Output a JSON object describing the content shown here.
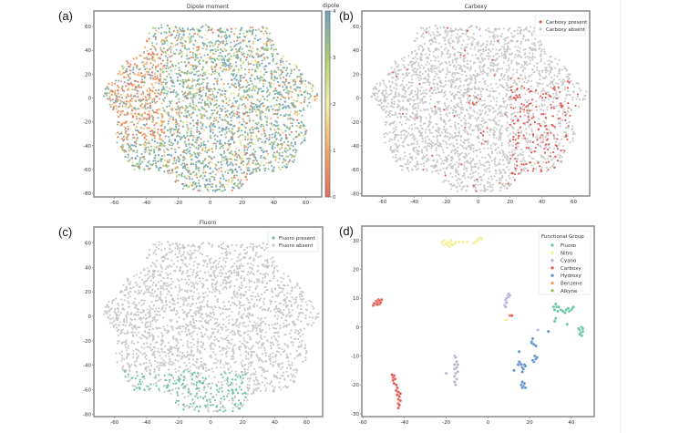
{
  "chart_data": [
    {
      "panel_label": "(a)",
      "type": "scatter",
      "title": "Dipole moment",
      "xlim": [
        -73,
        70
      ],
      "ylim": [
        -83,
        73
      ],
      "xticks": [
        -60,
        -40,
        -20,
        0,
        20,
        40,
        60
      ],
      "yticks": [
        60,
        40,
        20,
        0,
        -20,
        -40,
        -60,
        -80
      ],
      "colorbar": {
        "label": "dipole",
        "range": [
          0,
          4
        ],
        "ticks": [
          0,
          1,
          2,
          3,
          4
        ],
        "colors": [
          "#e8695c",
          "#f3a865",
          "#f6efaa",
          "#a9cf6e",
          "#6c9fc8"
        ]
      },
      "high_dipole_share": 0.6,
      "low_dipole_region": {
        "x": [
          -65,
          -30
        ],
        "y": [
          -35,
          50
        ]
      }
    },
    {
      "panel_label": "(b)",
      "type": "scatter",
      "title": "Carboxy",
      "xlim": [
        -73,
        70
      ],
      "ylim": [
        -82,
        73
      ],
      "xticks": [
        -60,
        -40,
        -20,
        0,
        20,
        40,
        60
      ],
      "yticks": [
        60,
        40,
        20,
        0,
        -20,
        -40,
        -60,
        -80
      ],
      "legend": {
        "placement": "top-right",
        "items": [
          {
            "label": "Carboxy present",
            "color": "#e5554e"
          },
          {
            "label": "Carboxy absent",
            "color": "#c8c8c8"
          }
        ]
      },
      "present_region": {
        "x": [
          20,
          65
        ],
        "y": [
          -72,
          10
        ]
      }
    },
    {
      "panel_label": "(c)",
      "type": "scatter",
      "title": "Fluoro",
      "xlim": [
        -73,
        70
      ],
      "ylim": [
        -82,
        73
      ],
      "xticks": [
        -60,
        -40,
        -20,
        0,
        20,
        40,
        60
      ],
      "yticks": [
        60,
        40,
        20,
        0,
        -20,
        -40,
        -60,
        -80
      ],
      "legend": {
        "placement": "top-right",
        "items": [
          {
            "label": "Fluoro present",
            "color": "#66c2a5"
          },
          {
            "label": "Fluoro absent",
            "color": "#c8c8c8"
          }
        ]
      },
      "present_region": {
        "x": [
          -58,
          22
        ],
        "y": [
          -78,
          -45
        ]
      }
    },
    {
      "panel_label": "(d)",
      "type": "scatter",
      "title": "",
      "xlim": [
        -60.5,
        51
      ],
      "ylim": [
        -31,
        35
      ],
      "xticks": [
        -60,
        -40,
        -20,
        0,
        20,
        40
      ],
      "yticks": [
        30,
        20,
        10,
        0,
        -10,
        -20,
        -30
      ],
      "legend": {
        "title": "Functional Group",
        "placement": "top-right"
      },
      "series": [
        {
          "name": "Fluoro",
          "color": "#66c2a5",
          "points": [
            [
              31.5,
              7
            ],
            [
              32,
              6
            ],
            [
              32.5,
              8
            ],
            [
              33,
              7
            ],
            [
              33.5,
              5.5
            ],
            [
              34,
              7
            ],
            [
              35,
              6
            ],
            [
              36,
              5.5
            ],
            [
              37,
              5
            ],
            [
              37.5,
              6
            ],
            [
              38.5,
              6.5
            ],
            [
              39,
              5.5
            ],
            [
              40,
              6
            ],
            [
              40.5,
              6.5
            ],
            [
              41,
              7
            ],
            [
              32,
              2
            ],
            [
              32.5,
              3
            ],
            [
              38,
              1
            ],
            [
              44,
              -1
            ],
            [
              44.5,
              -2
            ],
            [
              45,
              -3
            ],
            [
              45,
              0
            ],
            [
              45.5,
              -1.5
            ],
            [
              44,
              -2.5
            ],
            [
              45.5,
              -0.5
            ],
            [
              43.5,
              -0.5
            ]
          ]
        },
        {
          "name": "Nitro",
          "color": "#f2f08c",
          "points": [
            [
              -22,
              29.5
            ],
            [
              -21.5,
              28.5
            ],
            [
              -21,
              30
            ],
            [
              -20,
              29
            ],
            [
              -19.5,
              28.5
            ],
            [
              -19,
              29.5
            ],
            [
              -18.5,
              28
            ],
            [
              -18,
              29
            ],
            [
              -17.5,
              30
            ],
            [
              -17,
              28.5
            ],
            [
              -16,
              29
            ],
            [
              -15.5,
              29.5
            ],
            [
              -14,
              29.5
            ],
            [
              -12,
              29.5
            ],
            [
              -10,
              29.5
            ],
            [
              -7,
              29
            ],
            [
              -6,
              29.5
            ],
            [
              -5,
              30
            ],
            [
              -4.5,
              30.5
            ],
            [
              -4,
              31
            ],
            [
              -3.5,
              31
            ],
            [
              -3,
              30.5
            ],
            [
              8.5,
              2.5
            ],
            [
              9,
              2.5
            ]
          ]
        },
        {
          "name": "Cyano",
          "color": "#b4b0d6",
          "points": [
            [
              8,
              7.5
            ],
            [
              8.5,
              8.5
            ],
            [
              8.5,
              9.5
            ],
            [
              9,
              10
            ],
            [
              9.5,
              11
            ],
            [
              10,
              11.5
            ],
            [
              10,
              10.5
            ],
            [
              9,
              8.5
            ],
            [
              8.5,
              7
            ],
            [
              10.5,
              11
            ],
            [
              -20,
              -16
            ],
            [
              -16,
              -10
            ],
            [
              -15.5,
              -10.5
            ],
            [
              -15,
              -12
            ],
            [
              -16,
              -13
            ],
            [
              -15,
              -14
            ],
            [
              -16,
              -14.5
            ],
            [
              -14.5,
              -15.5
            ],
            [
              -15.5,
              -16
            ],
            [
              -16,
              -17
            ],
            [
              -15,
              -18
            ],
            [
              -16,
              -19
            ],
            [
              -15.5,
              -20
            ],
            [
              -14.5,
              -13
            ],
            [
              24,
              -1
            ]
          ]
        },
        {
          "name": "Carboxy",
          "color": "#e5554e",
          "points": [
            [
              -55,
              7.5
            ],
            [
              -54,
              8
            ],
            [
              -53.5,
              9
            ],
            [
              -53,
              8.5
            ],
            [
              -52.5,
              9.5
            ],
            [
              -52,
              8
            ],
            [
              -51.5,
              9
            ],
            [
              -51,
              9.5
            ],
            [
              -53,
              7.8
            ],
            [
              -52,
              9.2
            ],
            [
              -54.5,
              8.2
            ],
            [
              -51.5,
              8.5
            ],
            [
              -46,
              -16.5
            ],
            [
              -45.5,
              -17.5
            ],
            [
              -45,
              -16.8
            ],
            [
              -45.5,
              -18.5
            ],
            [
              -45,
              -19.5
            ],
            [
              -44.5,
              -18
            ],
            [
              -44,
              -20
            ],
            [
              -43.5,
              -21
            ],
            [
              -43,
              -22.5
            ],
            [
              -43.5,
              -23.5
            ],
            [
              -42.5,
              -24
            ],
            [
              -43,
              -25
            ],
            [
              -42,
              -25.5
            ],
            [
              -43,
              -26.5
            ],
            [
              -42.5,
              -27
            ],
            [
              -43,
              -28
            ],
            [
              -44,
              -22
            ],
            [
              -42,
              -23
            ],
            [
              10.5,
              4
            ],
            [
              11,
              4
            ],
            [
              11.5,
              4
            ]
          ]
        },
        {
          "name": "Hydroxy",
          "color": "#5b8fc5",
          "points": [
            [
              15,
              -8.5
            ],
            [
              15,
              -12
            ],
            [
              14.5,
              -13
            ],
            [
              15.5,
              -12.5
            ],
            [
              16,
              -13
            ],
            [
              16.5,
              -14
            ],
            [
              17,
              -14.5
            ],
            [
              17.5,
              -13
            ],
            [
              18,
              -13.5
            ],
            [
              16.5,
              -15.5
            ],
            [
              12.5,
              -15
            ],
            [
              16.5,
              -19
            ],
            [
              16,
              -20
            ],
            [
              17,
              -20.5
            ],
            [
              17.5,
              -19.5
            ],
            [
              18,
              -21
            ],
            [
              16.5,
              -21
            ],
            [
              21,
              -5
            ],
            [
              21.5,
              -4
            ],
            [
              22,
              -6
            ],
            [
              23,
              -6.5
            ],
            [
              22.5,
              -10
            ],
            [
              23,
              -11
            ],
            [
              23.5,
              -10.5
            ],
            [
              22,
              -12
            ],
            [
              21.5,
              -11.5
            ],
            [
              29,
              -1.5
            ],
            [
              21,
              -5.5
            ]
          ]
        },
        {
          "name": "Benzene",
          "color": "#f59a4a",
          "points": []
        },
        {
          "name": "Alkyne",
          "color": "#8cbf3f",
          "points": []
        }
      ]
    }
  ]
}
